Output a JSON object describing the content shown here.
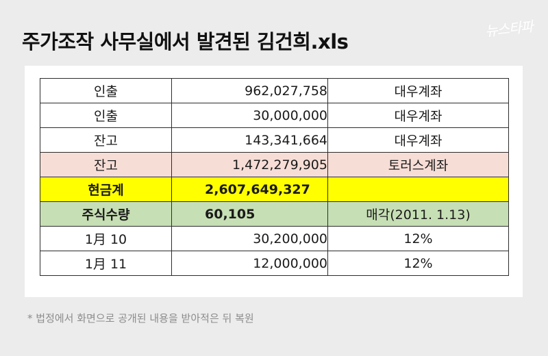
{
  "header": {
    "title": "주가조작 사무실에서 발견된 김건희.xls",
    "logo_text": "뉴스타파"
  },
  "sheet": {
    "rows": [
      {
        "label": "인출",
        "amount": "962,027,758",
        "note": "대우계좌",
        "style": "normal"
      },
      {
        "label": "인출",
        "amount": "30,000,000",
        "note": "대우계좌",
        "style": "normal"
      },
      {
        "label": "잔고",
        "amount": "143,341,664",
        "note": "대우계좌",
        "style": "normal"
      },
      {
        "label": "잔고",
        "amount": "1,472,279,905",
        "note": "토러스계좌",
        "style": "pink"
      },
      {
        "label": "현금계",
        "amount": "2,607,649,327",
        "note": "",
        "style": "yellow"
      },
      {
        "label": "주식수량",
        "amount": "60,105",
        "note": "매각(2011. 1.13)",
        "style": "green"
      },
      {
        "label": "1月 10",
        "amount": "30,200,000",
        "note": "12%",
        "style": "normal"
      },
      {
        "label": "1月 11",
        "amount": "12,000,000",
        "note": "12%",
        "style": "normal"
      }
    ],
    "colors": {
      "pink": "#f6ddd6",
      "yellow": "#ffff00",
      "green": "#c6dfb4",
      "border": "#2b2b2b"
    }
  },
  "footer": {
    "note": "* 법정에서 화면으로 공개된 내용을 받아적은 뒤 복원"
  }
}
